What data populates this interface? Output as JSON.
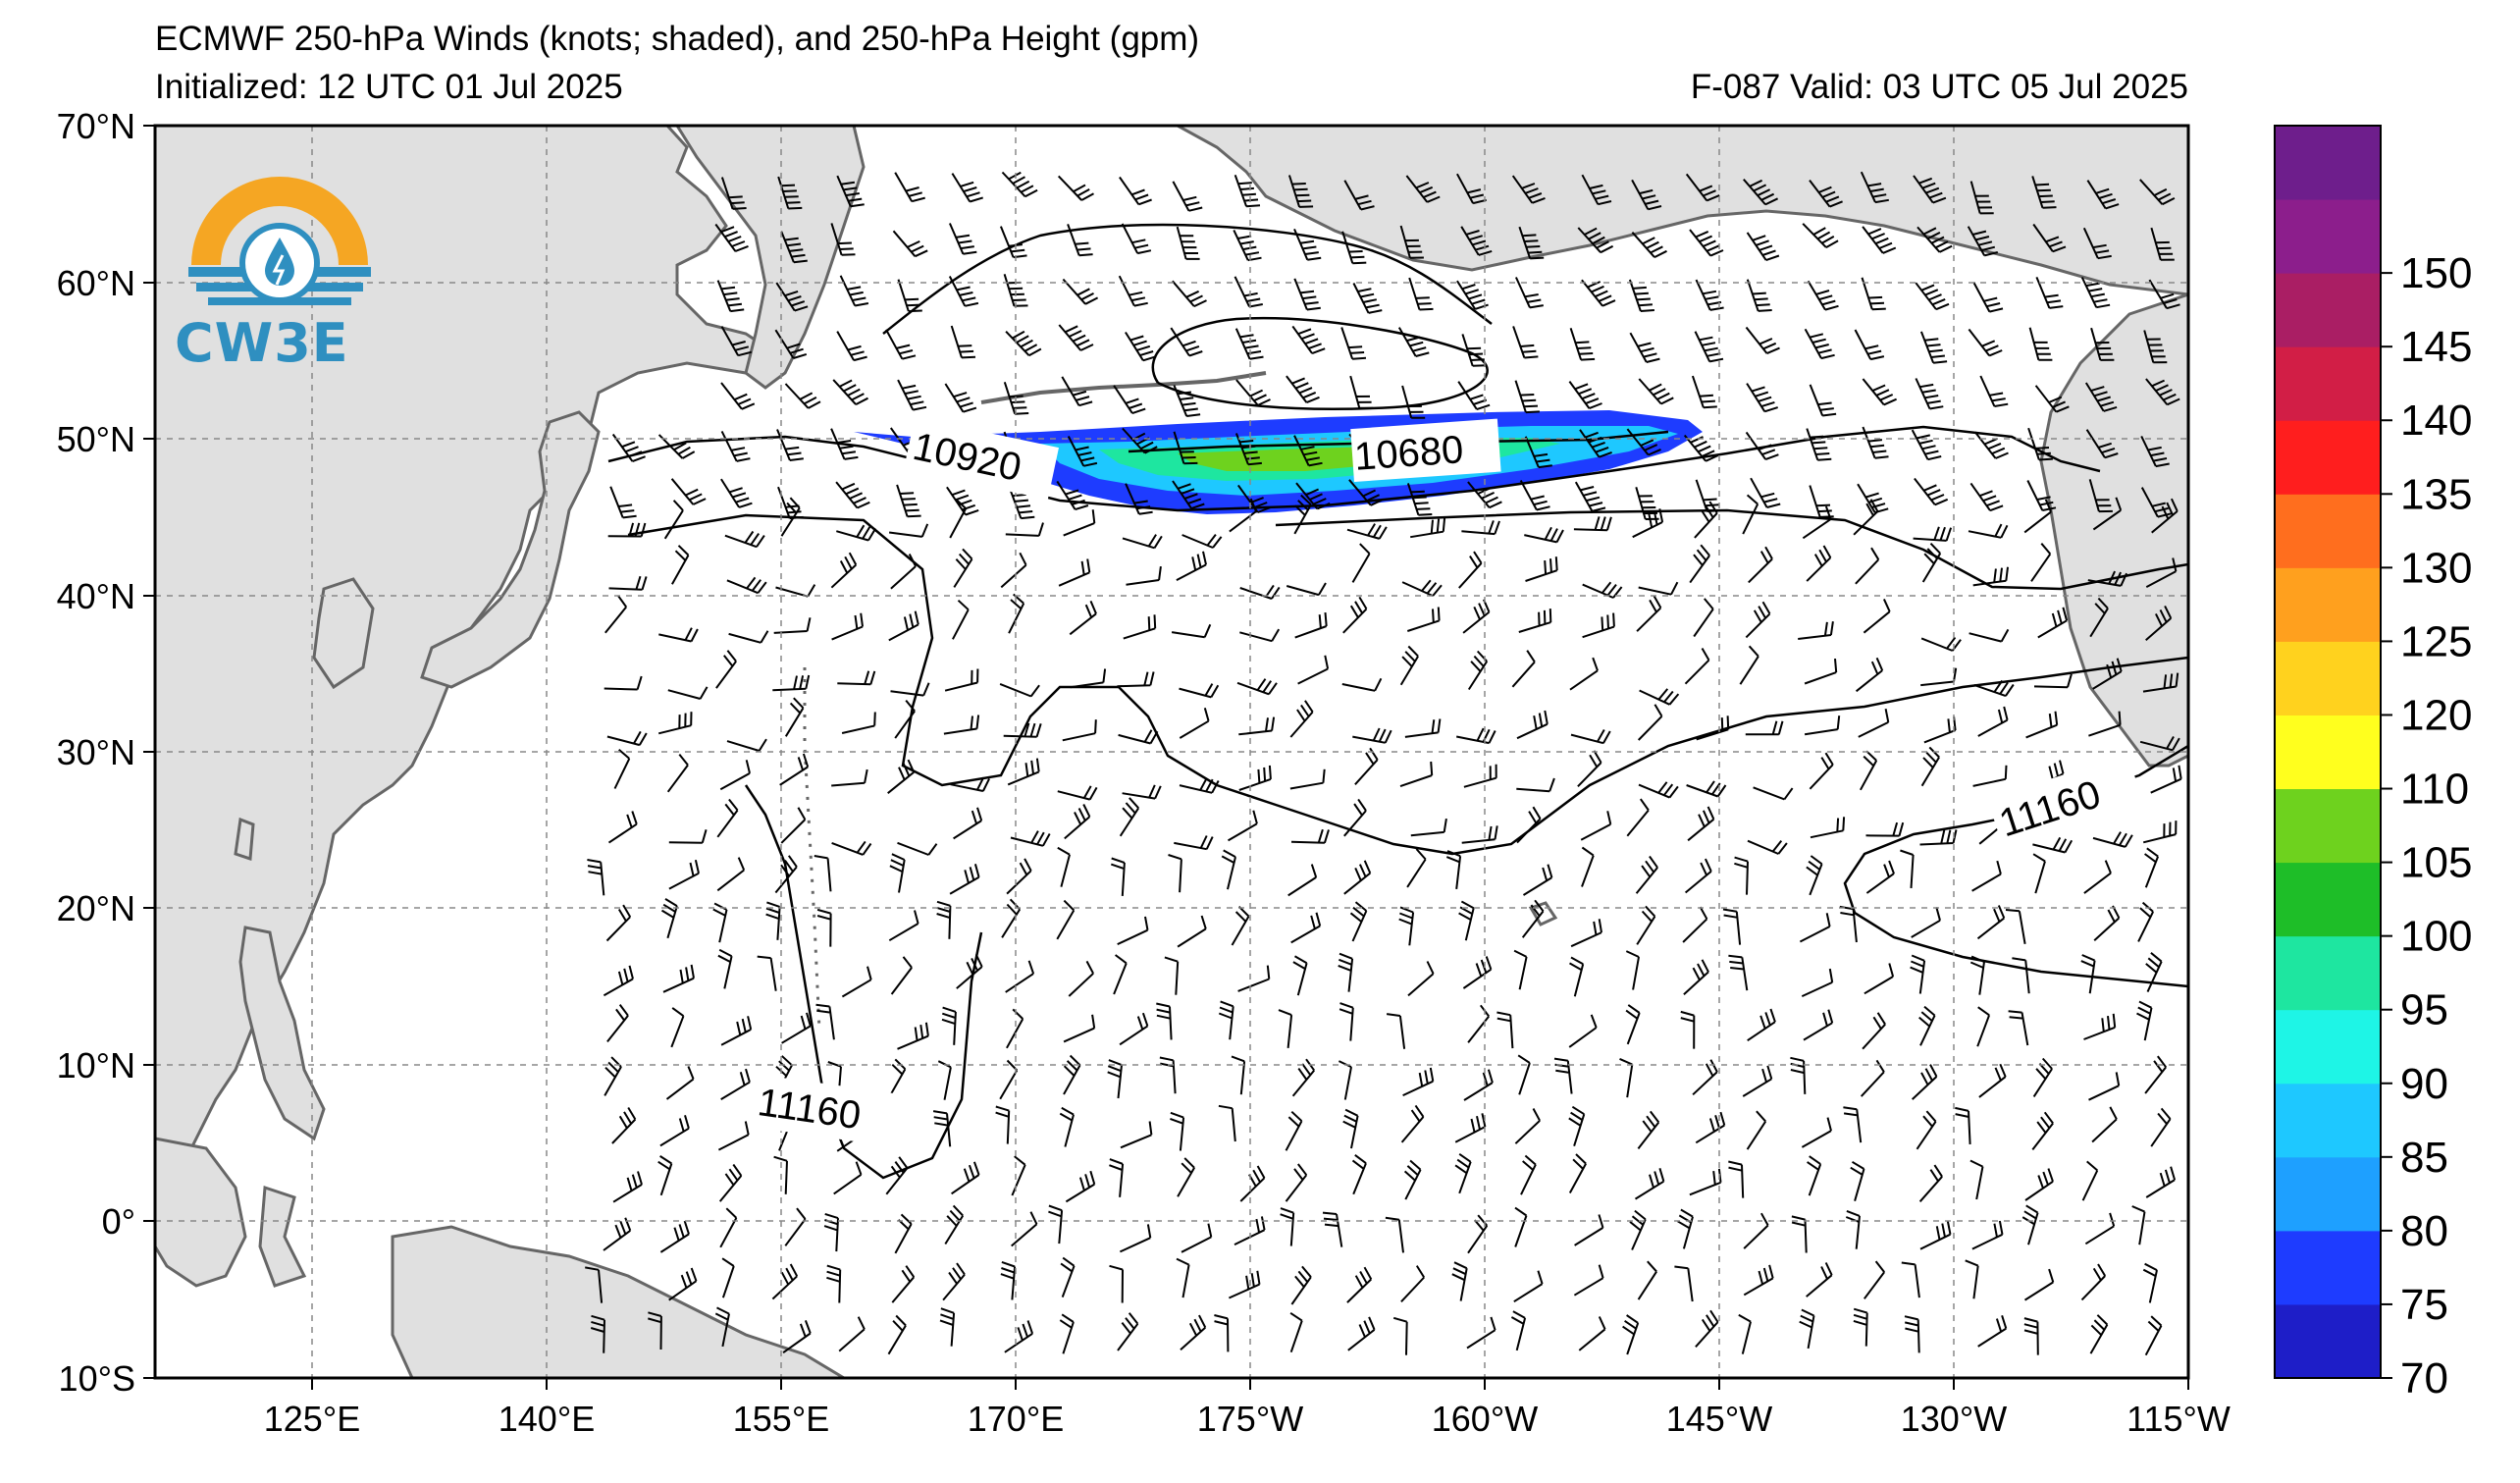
{
  "title_line1": "ECMWF 250-hPa Winds (knots; shaded), and 250-hPa Height (gpm)",
  "title_line2": "Initialized: 12 UTC 01 Jul 2025",
  "title_valid": "F-087  Valid: 03 UTC 05 Jul 2025",
  "logo_text": "CW3E",
  "lat_labels": [
    "70°N",
    "60°N",
    "50°N",
    "40°N",
    "30°N",
    "20°N",
    "10°N",
    "0°",
    "10°S"
  ],
  "lon_labels": [
    "125°E",
    "140°E",
    "155°E",
    "170°E",
    "175°W",
    "160°W",
    "145°W",
    "130°W",
    "115°W"
  ],
  "colorbar": {
    "labels": [
      "70",
      "75",
      "80",
      "85",
      "90",
      "95",
      "100",
      "105",
      "110",
      "120",
      "125",
      "130",
      "135",
      "140",
      "145",
      "150"
    ],
    "colors": [
      "#1e1ec8",
      "#1e3cff",
      "#1ea0ff",
      "#1ec8ff",
      "#1ef5e6",
      "#1ee6a0",
      "#1ebe28",
      "#6ed21e",
      "#ffff1e",
      "#ffd21e",
      "#ffa01e",
      "#ff6e1e",
      "#ff1e1e",
      "#d21e46",
      "#aa1e64",
      "#8c1e8c",
      "#6e1e8c"
    ]
  },
  "contour_labels": [
    "10920",
    "10680",
    "11160",
    "11160"
  ],
  "map_colors": {
    "land": "#e0e0e0",
    "coast": "#666666",
    "grid": "#888888",
    "jet_blue": "#1e3cff",
    "jet_cyan": "#1ec8ff",
    "jet_green": "#1ebe28"
  }
}
